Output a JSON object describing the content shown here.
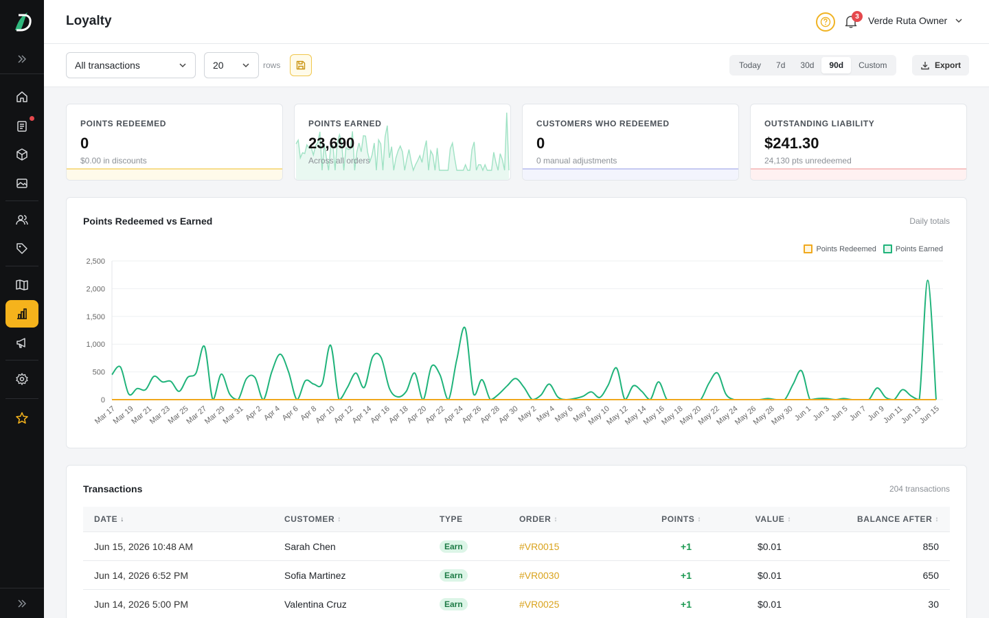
{
  "header": {
    "title": "Loyalty",
    "notifications_count": "3",
    "user_name": "Verde Ruta Owner"
  },
  "toolbar": {
    "filter_value": "All transactions",
    "rows_value": "20",
    "rows_label": "rows",
    "ranges": [
      "Today",
      "7d",
      "30d",
      "90d",
      "Custom"
    ],
    "active_range": "90d",
    "export_label": "Export"
  },
  "kpis": [
    {
      "label": "POINTS REDEEMED",
      "value": "0",
      "sub": "$0.00 in discounts",
      "color": "#f5c542"
    },
    {
      "label": "POINTS EARNED",
      "value": "23,690",
      "sub": "Across all orders",
      "color": "#34c98a"
    },
    {
      "label": "CUSTOMERS WHO REDEEMED",
      "value": "0",
      "sub": "0 manual adjustments",
      "color": "#8b93e6"
    },
    {
      "label": "OUTSTANDING LIABILITY",
      "value": "$241.30",
      "sub": "24,130 pts unredeemed",
      "color": "#f08a8a"
    }
  ],
  "chart_card": {
    "title": "Points Redeemed vs Earned",
    "note": "Daily totals"
  },
  "chart_data": {
    "type": "line",
    "ylim": [
      0,
      2500
    ],
    "yticks": [
      0,
      500,
      1000,
      1500,
      2000,
      2500
    ],
    "ytick_labels": [
      "0",
      "500",
      "1,000",
      "1,500",
      "2,000",
      "2,500"
    ],
    "x_labels": [
      "Mar 17",
      "Mar 19",
      "Mar 21",
      "Mar 23",
      "Mar 25",
      "Mar 27",
      "Mar 29",
      "Mar 31",
      "Apr 2",
      "Apr 4",
      "Apr 6",
      "Apr 8",
      "Apr 10",
      "Apr 12",
      "Apr 14",
      "Apr 16",
      "Apr 18",
      "Apr 20",
      "Apr 22",
      "Apr 24",
      "Apr 26",
      "Apr 28",
      "Apr 30",
      "May 2",
      "May 4",
      "May 6",
      "May 8",
      "May 10",
      "May 12",
      "May 14",
      "May 16",
      "May 18",
      "May 20",
      "May 22",
      "May 24",
      "May 26",
      "May 28",
      "May 30",
      "Jun 1",
      "Jun 3",
      "Jun 5",
      "Jun 7",
      "Jun 9",
      "Jun 11",
      "Jun 13",
      "Jun 15"
    ],
    "series": [
      {
        "name": "Points Redeemed",
        "color": "#f0a81c",
        "values": [
          0,
          0,
          0,
          0,
          0,
          0,
          0,
          0,
          0,
          0,
          0,
          0,
          0,
          0,
          0,
          0,
          0,
          0,
          0,
          0,
          0,
          0,
          0,
          0,
          0,
          0,
          0,
          0,
          0,
          0,
          0,
          0,
          0,
          0,
          0,
          0,
          0,
          0,
          0,
          0,
          0,
          0,
          0,
          0,
          0,
          0,
          0,
          0,
          0,
          0,
          0,
          0,
          0,
          0,
          0,
          0,
          0,
          0,
          0,
          0,
          0,
          0,
          0,
          0,
          0,
          0,
          0,
          0,
          0,
          0,
          0,
          0,
          0,
          0,
          0,
          0,
          0,
          0,
          0,
          0,
          0,
          0,
          0,
          0,
          0,
          0,
          0,
          0,
          0,
          0,
          0
        ]
      },
      {
        "name": "Points Earned",
        "color": "#1fb37a",
        "values": [
          450,
          590,
          100,
          200,
          180,
          420,
          320,
          330,
          150,
          400,
          480,
          960,
          0,
          460,
          100,
          0,
          380,
          400,
          0,
          500,
          820,
          500,
          0,
          340,
          280,
          290,
          980,
          0,
          220,
          480,
          220,
          770,
          760,
          200,
          50,
          150,
          480,
          0,
          600,
          450,
          0,
          720,
          1290,
          100,
          360,
          0,
          100,
          250,
          380,
          220,
          0,
          80,
          280,
          50,
          0,
          20,
          60,
          140,
          40,
          260,
          570,
          0,
          250,
          150,
          0,
          320,
          0,
          0,
          0,
          0,
          0,
          300,
          480,
          100,
          0,
          0,
          0,
          0,
          20,
          0,
          0,
          280,
          520,
          0,
          20,
          20,
          0,
          20,
          0,
          0,
          0,
          210,
          40,
          0,
          180,
          70,
          0,
          2150,
          0
        ]
      }
    ]
  },
  "table_card": {
    "title": "Transactions",
    "count": "204 transactions",
    "columns": [
      "DATE",
      "CUSTOMER",
      "TYPE",
      "ORDER",
      "POINTS",
      "VALUE",
      "BALANCE AFTER"
    ],
    "rows": [
      {
        "date": "Jun 15, 2026 10:48 AM",
        "customer": "Sarah Chen",
        "type": "Earn",
        "order": "#VR0015",
        "points": "+1",
        "value": "$0.01",
        "balance": "850"
      },
      {
        "date": "Jun 14, 2026 6:52 PM",
        "customer": "Sofia Martinez",
        "type": "Earn",
        "order": "#VR0030",
        "points": "+1",
        "value": "$0.01",
        "balance": "650"
      },
      {
        "date": "Jun 14, 2026 5:00 PM",
        "customer": "Valentina Cruz",
        "type": "Earn",
        "order": "#VR0025",
        "points": "+1",
        "value": "$0.01",
        "balance": "30"
      }
    ]
  },
  "colors": {
    "accent": "#f5b31c",
    "sidebar_bg": "#111214",
    "success": "#1a9850"
  },
  "sidebar": {
    "icons": [
      "expand-icon",
      "home-icon",
      "orders-icon",
      "box-icon",
      "image-icon",
      "customers-icon",
      "tag-icon",
      "book-icon",
      "chart-icon",
      "megaphone-icon",
      "settings-icon",
      "star-icon",
      "collapse-icon"
    ]
  }
}
